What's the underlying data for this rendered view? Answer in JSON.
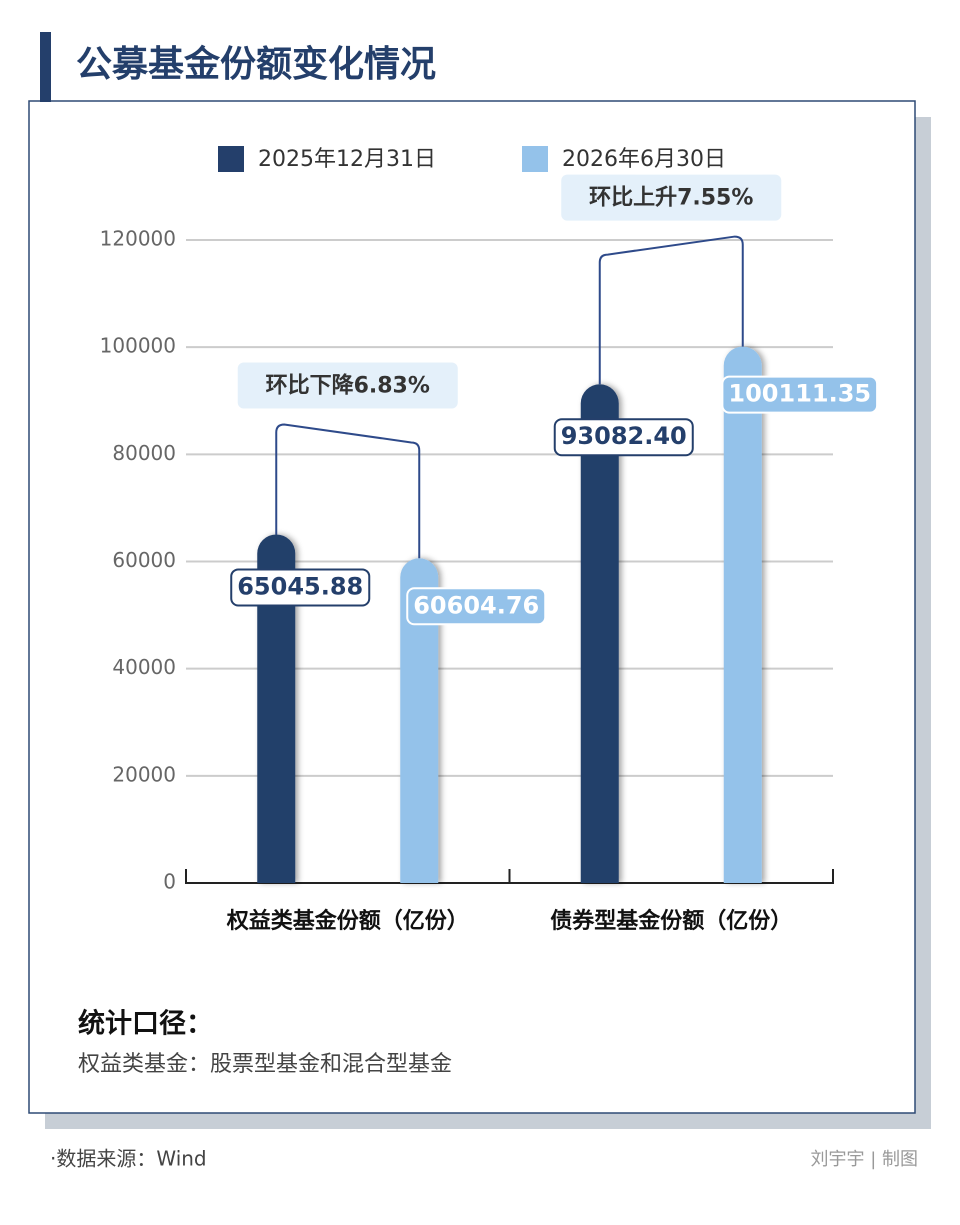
{
  "chart_data": {
    "type": "bar",
    "title": "公募基金份额变化情况",
    "categories": [
      "权益类基金份额（亿份）",
      "债券型基金份额（亿份）"
    ],
    "series": [
      {
        "name": "2025年12月31日",
        "color": "#243f6b",
        "values": [
          65045.88,
          93082.4
        ],
        "value_labels": [
          "65045.88",
          "93082.40"
        ]
      },
      {
        "name": "2026年6月30日",
        "color": "#94c2ea",
        "values": [
          60604.76,
          100111.35
        ],
        "value_labels": [
          "60604.76",
          "100111.35"
        ]
      }
    ],
    "annotations": [
      "环比下降6.83%",
      "环比上升7.55%"
    ],
    "ylim": [
      0,
      120000
    ],
    "yticks": [
      0,
      20000,
      40000,
      60000,
      80000,
      100000,
      120000
    ],
    "grid": true
  },
  "notes": {
    "heading": "统计口径：",
    "text": "权益类基金：股票型基金和混合型基金"
  },
  "footer": {
    "source": "·数据来源：Wind",
    "credit": "刘宇宇 | 制图"
  }
}
